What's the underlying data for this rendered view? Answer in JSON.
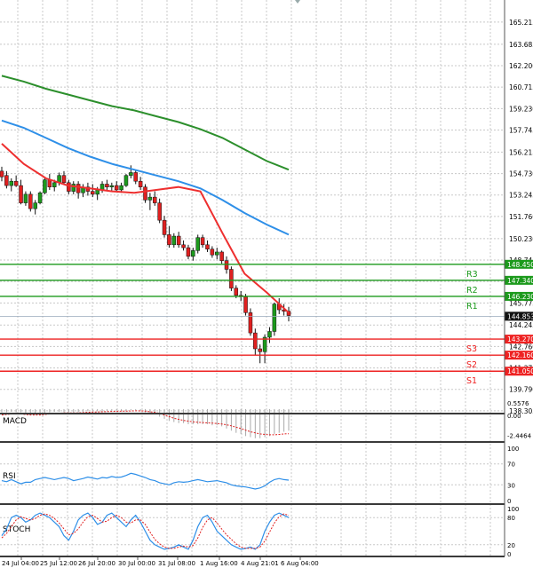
{
  "chart_data": {
    "type": "candlestick",
    "price_panel": {
      "ylim": [
        138.3,
        166.5
      ],
      "tick_labels": [
        "165.215",
        "163.685",
        "162.200",
        "160.715",
        "159.230",
        "157.745",
        "156.215",
        "154.730",
        "153.245",
        "151.760",
        "150.230",
        "148.745",
        "147.260",
        "145.775",
        "144.245",
        "142.760",
        "141.275",
        "139.790",
        "138.305"
      ],
      "candles": [
        [
          154.9,
          155.2,
          154.2,
          154.5
        ],
        [
          154.6,
          154.9,
          153.7,
          153.9
        ],
        [
          153.9,
          154.4,
          153.5,
          154.2
        ],
        [
          154.2,
          154.6,
          153.8,
          153.9
        ],
        [
          153.9,
          154.3,
          152.6,
          152.7
        ],
        [
          152.7,
          153.5,
          152.5,
          153.3
        ],
        [
          153.3,
          153.5,
          152.1,
          152.3
        ],
        [
          152.3,
          152.9,
          151.9,
          152.7
        ],
        [
          152.7,
          153.5,
          152.6,
          153.4
        ],
        [
          153.4,
          154.5,
          153.3,
          154.3
        ],
        [
          154.3,
          154.7,
          153.6,
          153.8
        ],
        [
          153.8,
          154.3,
          153.5,
          154.1
        ],
        [
          154.1,
          154.8,
          153.9,
          154.6
        ],
        [
          154.6,
          154.9,
          154.0,
          154.1
        ],
        [
          154.1,
          154.3,
          153.3,
          153.5
        ],
        [
          153.5,
          154.2,
          153.3,
          154.0
        ],
        [
          154.0,
          154.2,
          153.0,
          153.4
        ],
        [
          153.4,
          154.0,
          153.1,
          153.8
        ],
        [
          153.8,
          154.1,
          153.2,
          153.5
        ],
        [
          153.5,
          154.0,
          153.1,
          153.3
        ],
        [
          153.3,
          153.8,
          152.9,
          153.6
        ],
        [
          153.6,
          154.2,
          153.4,
          154.0
        ],
        [
          154.0,
          154.3,
          153.6,
          153.8
        ],
        [
          153.8,
          154.1,
          153.5,
          153.9
        ],
        [
          153.9,
          154.2,
          153.5,
          153.6
        ],
        [
          153.6,
          154.1,
          153.4,
          153.9
        ],
        [
          153.9,
          154.7,
          153.8,
          154.6
        ],
        [
          154.6,
          155.3,
          154.4,
          154.8
        ],
        [
          154.8,
          155.0,
          154.0,
          154.2
        ],
        [
          154.2,
          154.5,
          153.6,
          153.8
        ],
        [
          153.8,
          154.0,
          152.7,
          152.9
        ],
        [
          152.9,
          153.4,
          152.2,
          153.1
        ],
        [
          153.1,
          153.5,
          152.5,
          152.7
        ],
        [
          152.7,
          153.0,
          151.3,
          151.5
        ],
        [
          151.5,
          151.8,
          150.3,
          150.5
        ],
        [
          150.5,
          151.1,
          149.6,
          149.8
        ],
        [
          149.8,
          150.6,
          149.6,
          150.4
        ],
        [
          150.4,
          150.7,
          149.6,
          149.8
        ],
        [
          149.8,
          150.1,
          149.4,
          149.6
        ],
        [
          149.6,
          149.8,
          148.8,
          149.0
        ],
        [
          149.0,
          149.6,
          148.7,
          149.4
        ],
        [
          149.4,
          150.5,
          149.2,
          150.3
        ],
        [
          150.3,
          150.5,
          149.6,
          149.8
        ],
        [
          149.8,
          150.1,
          149.3,
          149.5
        ],
        [
          149.5,
          149.7,
          148.9,
          149.1
        ],
        [
          149.1,
          149.6,
          148.8,
          149.3
        ],
        [
          149.3,
          149.4,
          148.5,
          148.7
        ],
        [
          148.7,
          149.0,
          147.8,
          148.1
        ],
        [
          148.1,
          148.3,
          146.6,
          146.8
        ],
        [
          146.8,
          147.0,
          146.1,
          146.3
        ],
        [
          146.3,
          146.6,
          145.9,
          146.2
        ],
        [
          146.2,
          146.4,
          144.9,
          145.1
        ],
        [
          145.1,
          145.4,
          143.5,
          143.7
        ],
        [
          143.7,
          144.0,
          142.2,
          142.6
        ],
        [
          142.6,
          142.9,
          141.6,
          142.4
        ],
        [
          142.4,
          143.6,
          141.6,
          143.4
        ],
        [
          143.4,
          144.1,
          143.0,
          143.8
        ],
        [
          143.8,
          145.8,
          143.5,
          145.7
        ],
        [
          145.7,
          146.1,
          145.0,
          145.3
        ],
        [
          145.3,
          145.7,
          144.9,
          145.2
        ],
        [
          145.2,
          145.5,
          144.5,
          144.9
        ]
      ],
      "moving_averages": [
        {
          "color": "#ee2f2f",
          "values": [
            156.8,
            155.4,
            154.4,
            153.9,
            153.7,
            153.5,
            153.4,
            153.6,
            153.8,
            153.5,
            150.6,
            147.8,
            146.5,
            145.1
          ]
        },
        {
          "color": "#2e8fe8",
          "values": [
            158.4,
            157.9,
            157.2,
            156.5,
            155.9,
            155.4,
            155.0,
            154.6,
            154.2,
            153.7,
            152.9,
            152.0,
            151.2,
            150.5
          ]
        },
        {
          "color": "#2c8f2c",
          "values": [
            161.5,
            161.1,
            160.6,
            160.2,
            159.8,
            159.4,
            159.1,
            158.7,
            158.3,
            157.8,
            157.2,
            156.4,
            155.6,
            155.0
          ]
        }
      ],
      "levels": [
        {
          "label": "R3",
          "value": "148.450",
          "color": "#1c9a1c"
        },
        {
          "label": "R2",
          "value": "147.340",
          "color": "#1c9a1c"
        },
        {
          "label": "R1",
          "value": "146.230",
          "color": "#1c9a1c"
        },
        {
          "label": "S3",
          "value": "143.270",
          "color": "#ee2222"
        },
        {
          "label": "S2",
          "value": "142.160",
          "color": "#ee2222"
        },
        {
          "label": "S1",
          "value": "141.050",
          "color": "#ee2222"
        }
      ],
      "current_price": "144.853"
    },
    "macd": {
      "label": "MACD",
      "tick_labels": [
        "0.5576",
        "0.00",
        "-2.4464"
      ],
      "ylim": [
        -2.8,
        0.65
      ],
      "histogram": [
        -0.3,
        -0.3,
        -0.25,
        -0.3,
        -0.3,
        -0.35,
        -0.35,
        -0.4,
        -0.4,
        -0.35,
        -0.3,
        -0.25,
        -0.25,
        -0.3,
        -0.3,
        -0.3,
        -0.3,
        -0.25,
        -0.2,
        -0.2,
        -0.2,
        -0.2,
        -0.15,
        -0.15,
        -0.15,
        -0.2,
        -0.15,
        -0.1,
        -0.1,
        -0.2,
        -0.3,
        -0.4,
        -0.5,
        -0.7,
        -0.9,
        -1.1,
        -1.2,
        -1.3,
        -1.3,
        -1.4,
        -1.4,
        -1.4,
        -1.4,
        -1.4,
        -1.5,
        -1.5,
        -1.6,
        -1.8,
        -2.0,
        -2.2,
        -2.3,
        -2.5,
        -2.6,
        -2.7,
        -2.7,
        -2.6,
        -2.5,
        -2.3,
        -2.2,
        -2.1,
        -2.0
      ],
      "signal": [
        -0.55,
        -0.5,
        -0.45,
        -0.45,
        -0.45,
        -0.5,
        -0.55,
        -0.55,
        -0.55,
        -0.5,
        -0.45,
        -0.4,
        -0.38,
        -0.36,
        -0.36,
        -0.35,
        -0.35,
        -0.33,
        -0.3,
        -0.28,
        -0.27,
        -0.25,
        -0.24,
        -0.22,
        -0.21,
        -0.2,
        -0.2,
        -0.18,
        -0.16,
        -0.17,
        -0.2,
        -0.25,
        -0.3,
        -0.4,
        -0.55,
        -0.7,
        -0.85,
        -0.95,
        -1.05,
        -1.12,
        -1.18,
        -1.22,
        -1.25,
        -1.28,
        -1.3,
        -1.34,
        -1.38,
        -1.45,
        -1.55,
        -1.68,
        -1.8,
        -1.95,
        -2.1,
        -2.2,
        -2.3,
        -2.35,
        -2.38,
        -2.38,
        -2.35,
        -2.3,
        -2.28
      ]
    },
    "rsi": {
      "label": "RSI",
      "tick_labels": [
        "100",
        "70",
        "30",
        "0"
      ],
      "ylim": [
        0,
        100
      ],
      "values": [
        38,
        36,
        40,
        36,
        32,
        35,
        35,
        40,
        42,
        44,
        42,
        40,
        42,
        44,
        42,
        38,
        40,
        42,
        45,
        43,
        41,
        44,
        43,
        46,
        44,
        45,
        48,
        52,
        50,
        47,
        44,
        40,
        38,
        34,
        32,
        30,
        34,
        36,
        35,
        36,
        38,
        40,
        38,
        36,
        37,
        38,
        36,
        34,
        30,
        28,
        27,
        26,
        24,
        22,
        24,
        28,
        35,
        40,
        42,
        40,
        39
      ]
    },
    "stoch": {
      "label": "STOCH",
      "tick_labels": [
        "100",
        "80",
        "20",
        "0"
      ],
      "ylim": [
        0,
        100
      ],
      "k": [
        40,
        55,
        80,
        85,
        80,
        70,
        75,
        85,
        90,
        85,
        80,
        70,
        60,
        40,
        30,
        50,
        75,
        85,
        90,
        80,
        65,
        70,
        85,
        90,
        80,
        70,
        60,
        75,
        85,
        70,
        50,
        30,
        20,
        15,
        10,
        12,
        15,
        20,
        15,
        10,
        30,
        60,
        80,
        85,
        70,
        50,
        40,
        30,
        20,
        15,
        10,
        12,
        15,
        10,
        20,
        50,
        70,
        85,
        90,
        85,
        80
      ],
      "d": [
        35,
        45,
        60,
        75,
        82,
        78,
        75,
        78,
        85,
        88,
        85,
        78,
        68,
        55,
        42,
        45,
        55,
        70,
        82,
        85,
        78,
        70,
        72,
        80,
        85,
        80,
        70,
        68,
        75,
        75,
        65,
        48,
        32,
        22,
        15,
        12,
        12,
        15,
        17,
        15,
        18,
        35,
        58,
        75,
        80,
        68,
        55,
        42,
        32,
        22,
        15,
        12,
        12,
        12,
        15,
        28,
        48,
        68,
        82,
        88,
        85
      ]
    },
    "x_tick_labels": [
      "24 Jul 04:00",
      "25 Jul 12:00",
      "26 Jul 20:00",
      "30 Jul 00:00",
      "31 Jul 08:00",
      "1 Aug 16:00",
      "4 Aug 21:01",
      "6 Aug 04:00"
    ],
    "colors": {
      "up": "#1c9a1c",
      "down": "#e02020",
      "grid": "#c8c8c8",
      "separator": "#3a3a3a",
      "macd_signal": "#e02020",
      "rsi_line": "#2e8fe8",
      "stoch_k": "#2e8fe8",
      "stoch_d": "#e02020"
    }
  }
}
